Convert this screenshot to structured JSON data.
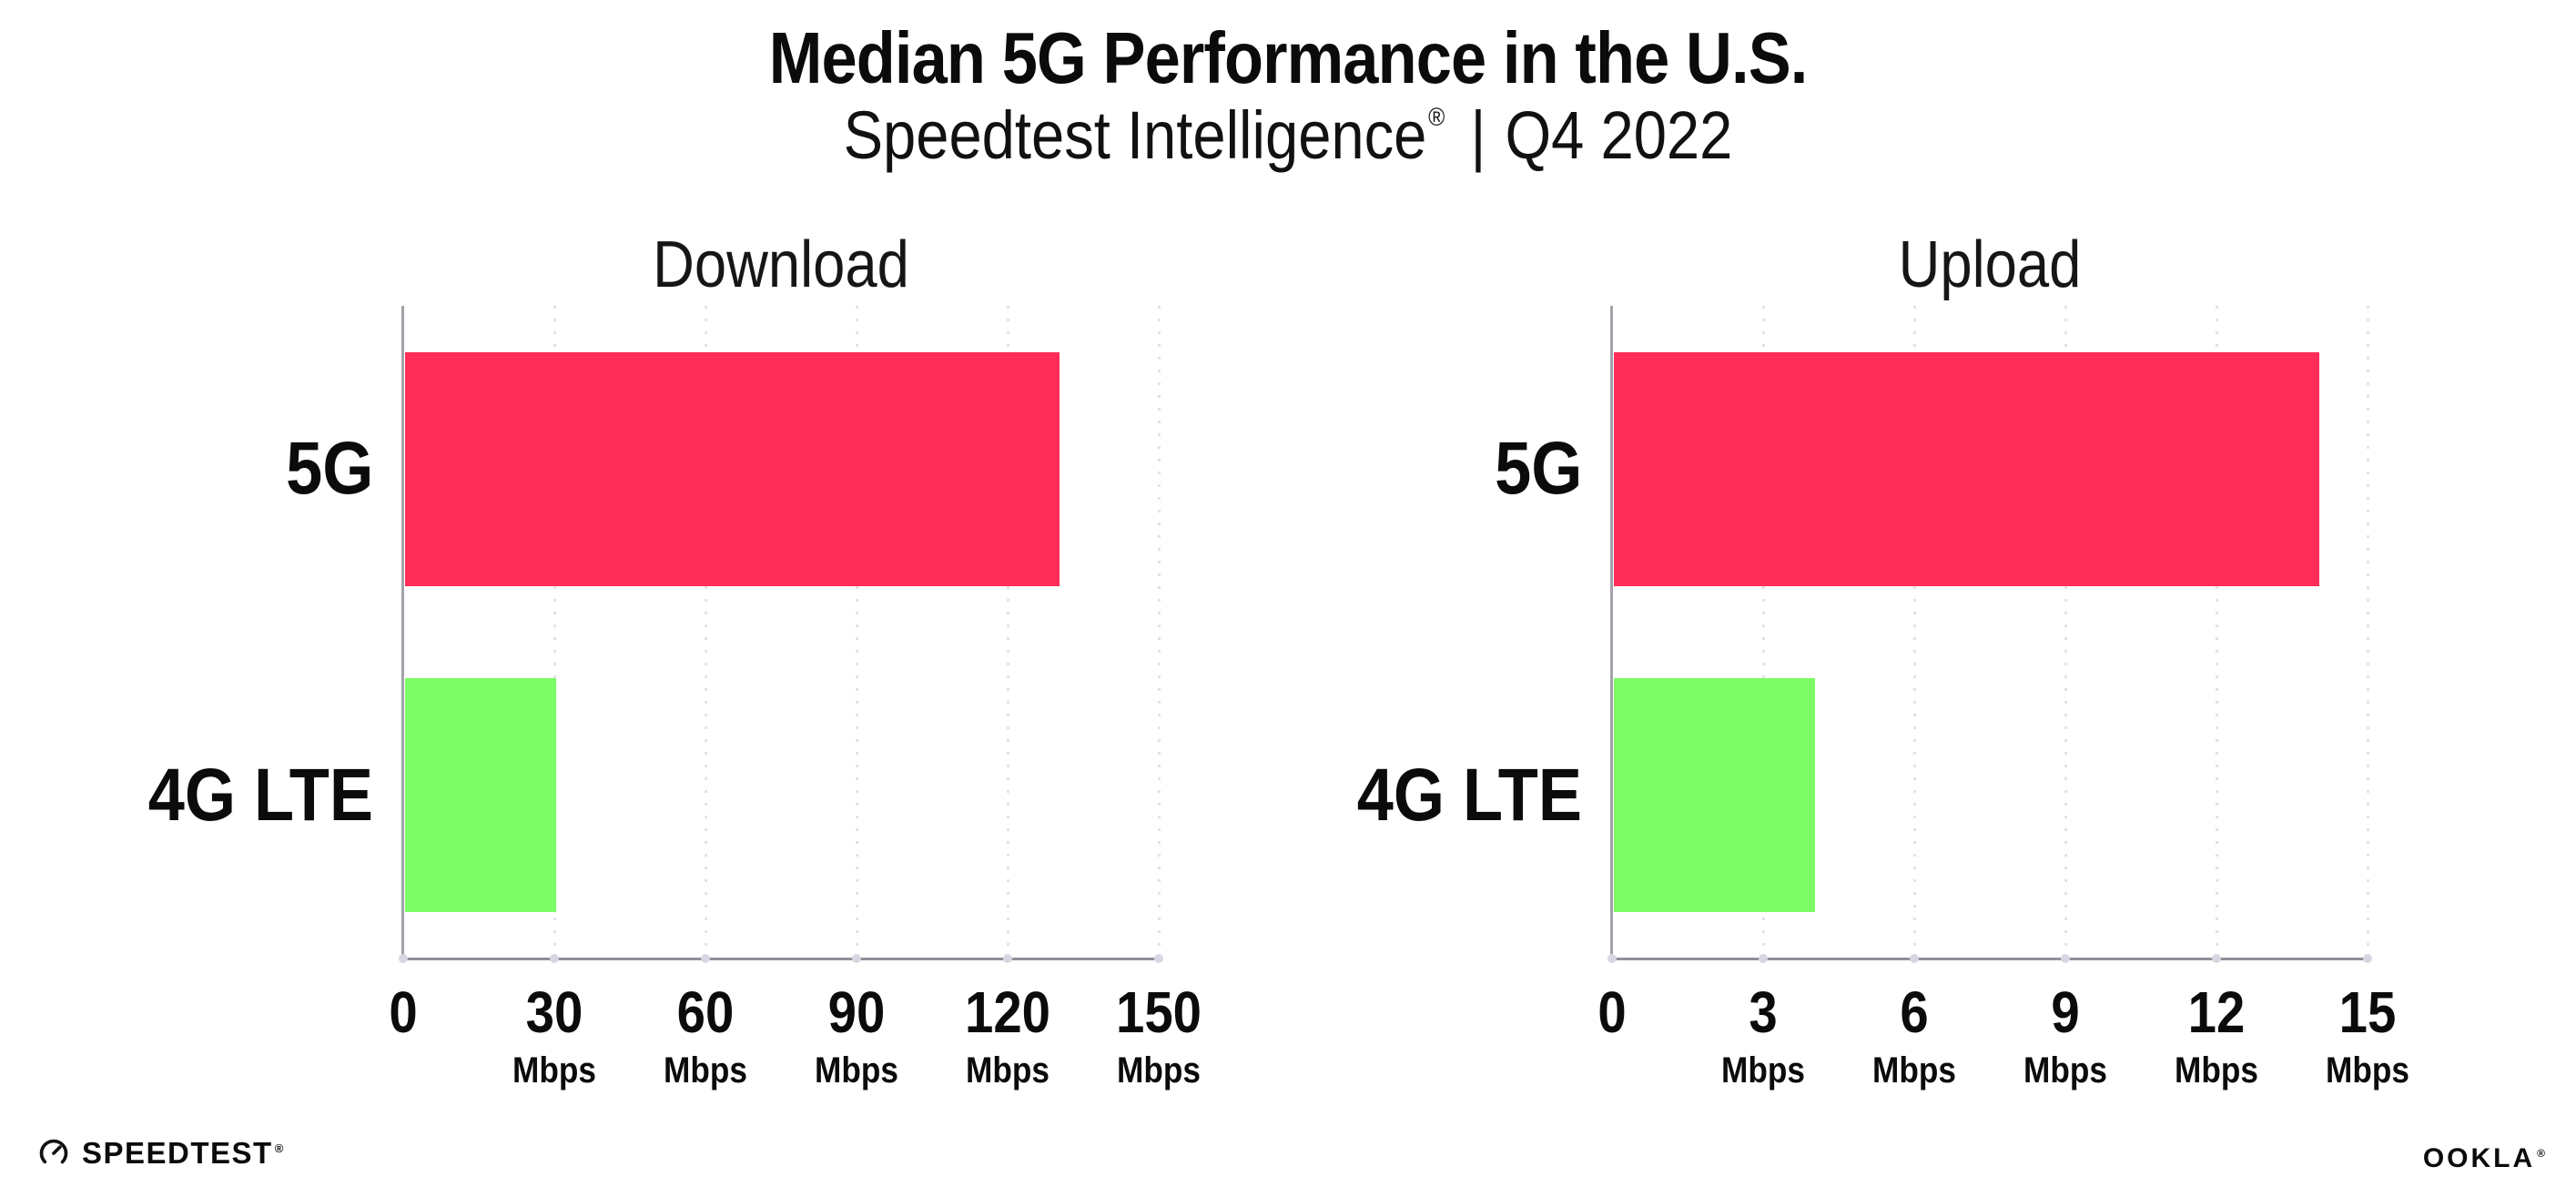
{
  "header": {
    "title": "Median 5G Performance in the U.S.",
    "subtitle": {
      "brand": "Speedtest Intelligence",
      "registered": "®",
      "separator": "|",
      "period": "Q4 2022"
    }
  },
  "chart_data": [
    {
      "type": "bar",
      "orientation": "horizontal",
      "title": "Download",
      "unit": "Mbps",
      "categories": [
        "5G",
        "4G LTE"
      ],
      "values": [
        130,
        30
      ],
      "xlim": [
        0,
        150
      ],
      "xticks": [
        0,
        30,
        60,
        90,
        120,
        150
      ],
      "bar_colors": [
        "#ff2d58",
        "#7dfd66"
      ],
      "grid": "dotted-vertical",
      "legend": "none"
    },
    {
      "type": "bar",
      "orientation": "horizontal",
      "title": "Upload",
      "unit": "Mbps",
      "categories": [
        "5G",
        "4G LTE"
      ],
      "values": [
        14,
        4
      ],
      "xlim": [
        0,
        15
      ],
      "xticks": [
        0,
        3,
        6,
        9,
        12,
        15
      ],
      "bar_colors": [
        "#ff2d58",
        "#7dfd66"
      ],
      "grid": "dotted-vertical",
      "legend": "none"
    }
  ],
  "footer": {
    "speedtest_wordmark": "SPEEDTEST",
    "speedtest_registered": "®",
    "ookla_wordmark": "OOKLA",
    "ookla_registered": "®"
  },
  "colors": {
    "bar_5g": "#ff2d58",
    "bar_4g_lte": "#7dfd66",
    "x_axis_line": "#8f8f97",
    "y_axis_line": "#a2a2aa",
    "gridline": "#e2e2ed",
    "tick_dot": "#d7d7e3",
    "text_primary": "#0b0b0b"
  }
}
